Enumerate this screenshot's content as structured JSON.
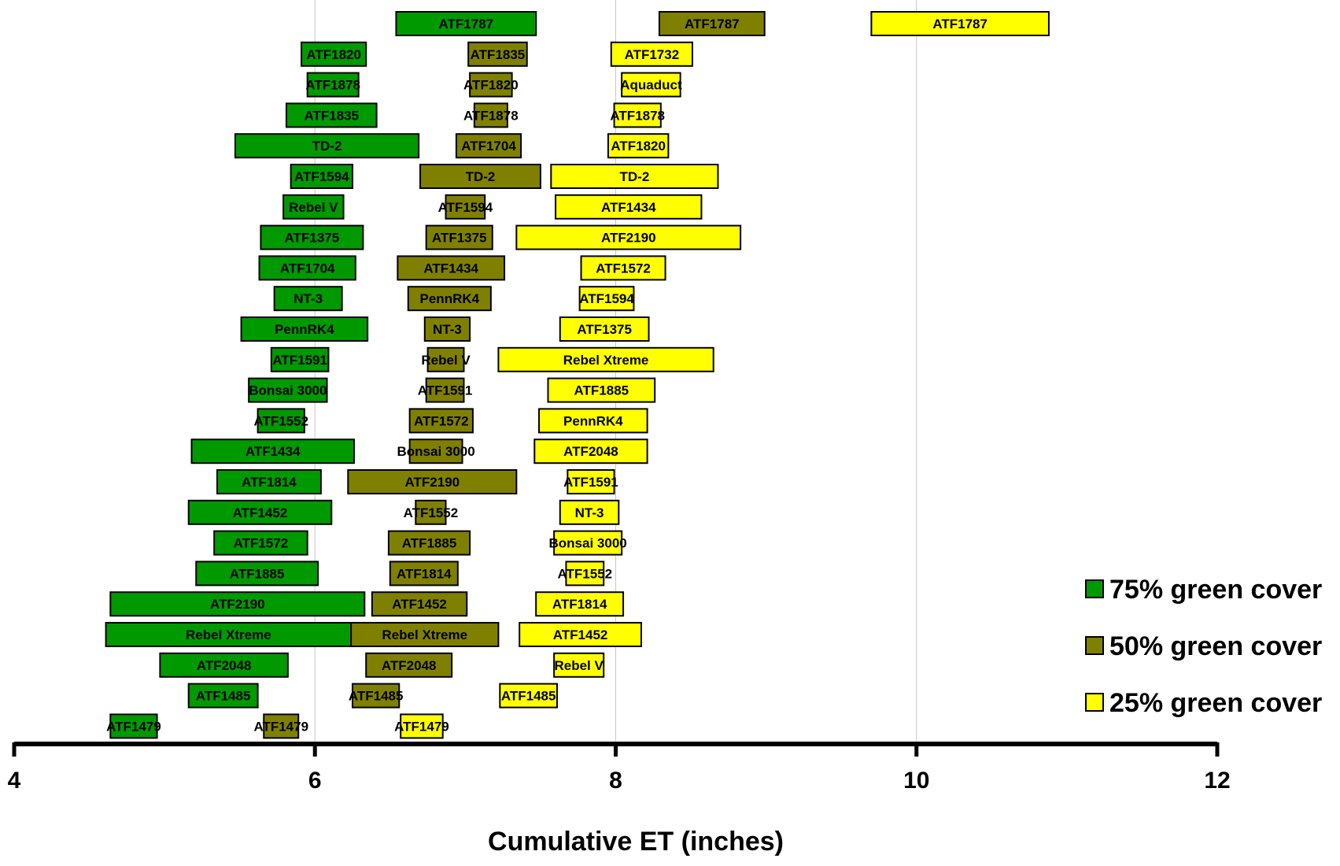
{
  "chart_data": {
    "type": "bar",
    "subtype": "floating-range",
    "xlabel": "Cumulative ET (inches)",
    "xlim": [
      4,
      12
    ],
    "xticks": [
      4,
      6,
      8,
      10,
      12
    ],
    "grid": "vertical",
    "legend_position": "bottom-right",
    "series": [
      {
        "name": "75% green cover",
        "color": "#009900",
        "bars": [
          {
            "label": "ATF1787",
            "start": 6.54,
            "end": 7.47
          },
          {
            "label": "ATF1820",
            "start": 5.91,
            "end": 6.34
          },
          {
            "label": "ATF1878",
            "start": 5.95,
            "end": 6.29
          },
          {
            "label": "ATF1835",
            "start": 5.81,
            "end": 6.41
          },
          {
            "label": "TD-2",
            "start": 5.47,
            "end": 6.69
          },
          {
            "label": "ATF1594",
            "start": 5.84,
            "end": 6.25
          },
          {
            "label": "Rebel V",
            "start": 5.79,
            "end": 6.19
          },
          {
            "label": "ATF1375",
            "start": 5.64,
            "end": 6.32
          },
          {
            "label": "ATF1704",
            "start": 5.63,
            "end": 6.27
          },
          {
            "label": "NT-3",
            "start": 5.73,
            "end": 6.18
          },
          {
            "label": "PennRK4",
            "start": 5.51,
            "end": 6.35
          },
          {
            "label": "ATF1591",
            "start": 5.71,
            "end": 6.09
          },
          {
            "label": "Bonsai 3000",
            "start": 5.56,
            "end": 6.08
          },
          {
            "label": "ATF1552",
            "start": 5.62,
            "end": 5.93
          },
          {
            "label": "ATF1434",
            "start": 5.18,
            "end": 6.26
          },
          {
            "label": "ATF1814",
            "start": 5.35,
            "end": 6.04
          },
          {
            "label": "ATF1452",
            "start": 5.16,
            "end": 6.11
          },
          {
            "label": "ATF1572",
            "start": 5.33,
            "end": 5.95
          },
          {
            "label": "ATF1885",
            "start": 5.21,
            "end": 6.02
          },
          {
            "label": "ATF2190",
            "start": 4.64,
            "end": 6.33
          },
          {
            "label": "Rebel Xtreme",
            "start": 4.61,
            "end": 6.24
          },
          {
            "label": "ATF2048",
            "start": 4.97,
            "end": 5.82
          },
          {
            "label": "ATF1485",
            "start": 5.16,
            "end": 5.62
          },
          {
            "label": "ATF1479",
            "start": 4.64,
            "end": 4.95
          }
        ]
      },
      {
        "name": "50% green cover",
        "color": "#808000",
        "bars": [
          {
            "label": "ATF1787",
            "start": 8.29,
            "end": 8.99
          },
          {
            "label": "ATF1835",
            "start": 7.02,
            "end": 7.41
          },
          {
            "label": "ATF1820",
            "start": 7.03,
            "end": 7.31
          },
          {
            "label": "ATF1878",
            "start": 7.06,
            "end": 7.28
          },
          {
            "label": "ATF1704",
            "start": 6.94,
            "end": 7.37
          },
          {
            "label": "TD-2",
            "start": 6.7,
            "end": 7.5
          },
          {
            "label": "ATF1594",
            "start": 6.87,
            "end": 7.13
          },
          {
            "label": "ATF1375",
            "start": 6.74,
            "end": 7.18
          },
          {
            "label": "ATF1434",
            "start": 6.55,
            "end": 7.26
          },
          {
            "label": "PennRK4",
            "start": 6.62,
            "end": 7.17
          },
          {
            "label": "NT-3",
            "start": 6.73,
            "end": 7.03
          },
          {
            "label": "Rebel V",
            "start": 6.75,
            "end": 6.99
          },
          {
            "label": "ATF1591",
            "start": 6.74,
            "end": 6.99
          },
          {
            "label": "ATF1572",
            "start": 6.63,
            "end": 7.05
          },
          {
            "label": "Bonsai 3000",
            "start": 6.63,
            "end": 6.98
          },
          {
            "label": "ATF2190",
            "start": 6.22,
            "end": 7.34
          },
          {
            "label": "ATF1552",
            "start": 6.67,
            "end": 6.87
          },
          {
            "label": "ATF1885",
            "start": 6.49,
            "end": 7.03
          },
          {
            "label": "ATF1814",
            "start": 6.5,
            "end": 6.95
          },
          {
            "label": "ATF1452",
            "start": 6.38,
            "end": 7.01
          },
          {
            "label": "Rebel Xtreme",
            "start": 6.24,
            "end": 7.22
          },
          {
            "label": "ATF2048",
            "start": 6.34,
            "end": 6.91
          },
          {
            "label": "ATF1485",
            "start": 6.25,
            "end": 6.56
          },
          {
            "label": "ATF1479",
            "start": 5.66,
            "end": 5.89
          }
        ]
      },
      {
        "name": "25% green cover",
        "color": "#ffff00",
        "bars": [
          {
            "label": "ATF1787",
            "start": 9.7,
            "end": 10.88
          },
          {
            "label": "ATF1732",
            "start": 7.97,
            "end": 8.51
          },
          {
            "label": "Aquaduct",
            "start": 8.04,
            "end": 8.43
          },
          {
            "label": "ATF1878",
            "start": 7.99,
            "end": 8.3
          },
          {
            "label": "ATF1820",
            "start": 7.95,
            "end": 8.35
          },
          {
            "label": "TD-2",
            "start": 7.57,
            "end": 8.68
          },
          {
            "label": "ATF1434",
            "start": 7.6,
            "end": 8.57
          },
          {
            "label": "ATF2190",
            "start": 7.34,
            "end": 8.83
          },
          {
            "label": "ATF1572",
            "start": 7.77,
            "end": 8.33
          },
          {
            "label": "ATF1594",
            "start": 7.76,
            "end": 8.12
          },
          {
            "label": "ATF1375",
            "start": 7.63,
            "end": 8.22
          },
          {
            "label": "Rebel Xtreme",
            "start": 7.22,
            "end": 8.65
          },
          {
            "label": "ATF1885",
            "start": 7.55,
            "end": 8.26
          },
          {
            "label": "PennRK4",
            "start": 7.49,
            "end": 8.21
          },
          {
            "label": "ATF2048",
            "start": 7.46,
            "end": 8.21
          },
          {
            "label": "ATF1591",
            "start": 7.68,
            "end": 7.99
          },
          {
            "label": "NT-3",
            "start": 7.63,
            "end": 8.02
          },
          {
            "label": "Bonsai 3000",
            "start": 7.59,
            "end": 8.04
          },
          {
            "label": "ATF1552",
            "start": 7.67,
            "end": 7.92
          },
          {
            "label": "ATF1814",
            "start": 7.47,
            "end": 8.05
          },
          {
            "label": "ATF1452",
            "start": 7.36,
            "end": 8.17
          },
          {
            "label": "Rebel V",
            "start": 7.59,
            "end": 7.92
          },
          {
            "label": "ATF1485",
            "start": 7.23,
            "end": 7.61
          },
          {
            "label": "ATF1479",
            "start": 6.57,
            "end": 6.85
          }
        ]
      }
    ]
  }
}
